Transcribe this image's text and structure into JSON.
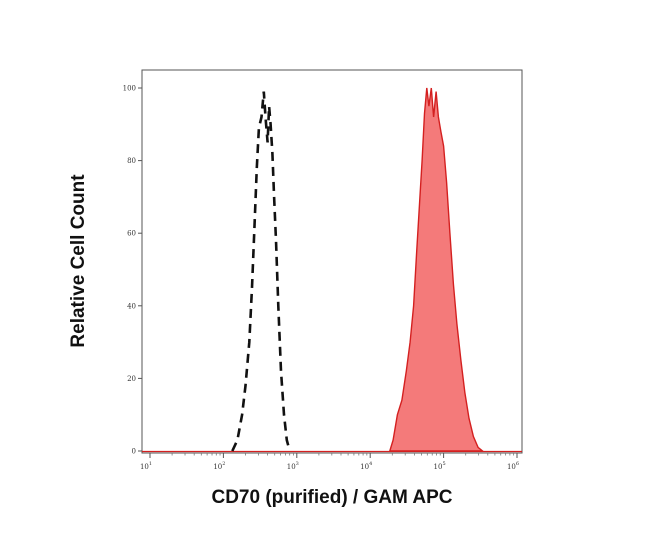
{
  "chart_data": {
    "type": "area",
    "xlabel": "CD70 (purified) / GAM APC",
    "ylabel": "Relative Cell Count",
    "x_scale": "log",
    "xlim": [
      10,
      1000000
    ],
    "ylim": [
      0,
      100
    ],
    "x_ticks": [
      {
        "value": 10,
        "base": "10",
        "exp": "1"
      },
      {
        "value": 100,
        "base": "10",
        "exp": "2"
      },
      {
        "value": 1000,
        "base": "10",
        "exp": "3"
      },
      {
        "value": 10000,
        "base": "10",
        "exp": "4"
      },
      {
        "value": 100000,
        "base": "10",
        "exp": "5"
      },
      {
        "value": 1000000,
        "base": "10",
        "exp": "6"
      }
    ],
    "y_ticks": [
      0,
      20,
      40,
      60,
      80,
      100
    ],
    "grid": false,
    "series": [
      {
        "style": "dashed-outline",
        "color": "#111111",
        "points": [
          [
            132,
            0
          ],
          [
            155,
            3
          ],
          [
            180,
            10
          ],
          [
            200,
            18
          ],
          [
            225,
            30
          ],
          [
            245,
            45
          ],
          [
            265,
            62
          ],
          [
            285,
            78
          ],
          [
            305,
            89
          ],
          [
            330,
            92
          ],
          [
            355,
            99
          ],
          [
            375,
            92
          ],
          [
            400,
            85
          ],
          [
            420,
            95
          ],
          [
            440,
            90
          ],
          [
            465,
            82
          ],
          [
            490,
            70
          ],
          [
            520,
            58
          ],
          [
            560,
            40
          ],
          [
            610,
            22
          ],
          [
            670,
            10
          ],
          [
            730,
            3
          ],
          [
            800,
            0
          ]
        ]
      },
      {
        "style": "filled",
        "color": "#d42020",
        "fill": "#f47a7a",
        "points": [
          [
            18500,
            0
          ],
          [
            20500,
            3
          ],
          [
            23500,
            10
          ],
          [
            27000,
            14
          ],
          [
            31000,
            22
          ],
          [
            35000,
            30
          ],
          [
            39000,
            40
          ],
          [
            43000,
            55
          ],
          [
            47000,
            68
          ],
          [
            51000,
            80
          ],
          [
            55000,
            93
          ],
          [
            59000,
            100
          ],
          [
            63000,
            95
          ],
          [
            68000,
            100
          ],
          [
            73000,
            92
          ],
          [
            79000,
            99
          ],
          [
            85000,
            92
          ],
          [
            92000,
            88
          ],
          [
            100000,
            84
          ],
          [
            110000,
            74
          ],
          [
            122000,
            60
          ],
          [
            136000,
            46
          ],
          [
            152000,
            35
          ],
          [
            172000,
            25
          ],
          [
            195000,
            16
          ],
          [
            222000,
            9
          ],
          [
            255000,
            4
          ],
          [
            295000,
            1
          ],
          [
            340000,
            0
          ]
        ]
      }
    ]
  }
}
